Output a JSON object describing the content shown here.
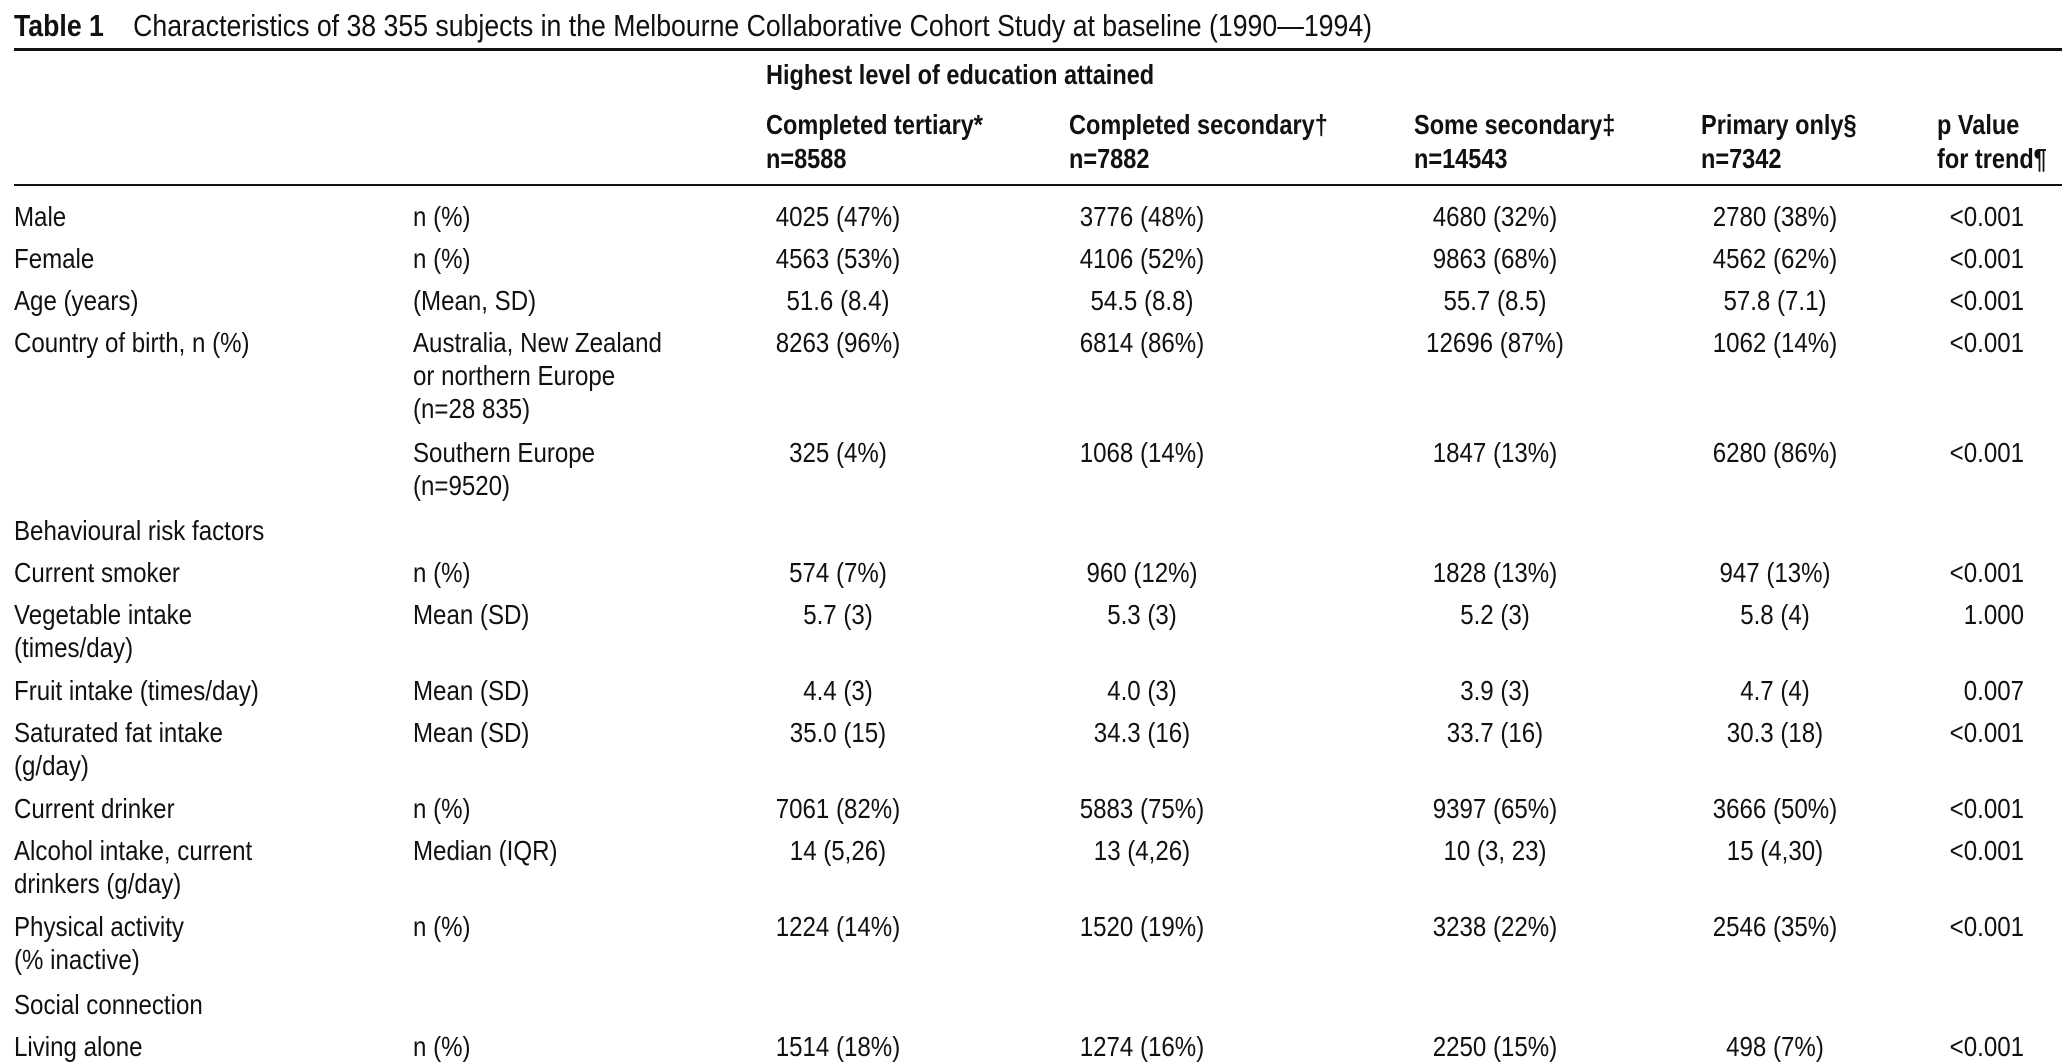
{
  "caption": {
    "label": "Table 1",
    "text": "Characteristics of 38 355 subjects in the Melbourne Collaborative Cohort Study at baseline (1990—1994)"
  },
  "header": {
    "group_title": "Highest level of education attained",
    "columns": [
      {
        "label": "Completed tertiary*",
        "n": "n=8588"
      },
      {
        "label": "Completed secondary†",
        "n": "n=7882"
      },
      {
        "label": "Some secondary‡",
        "n": "n=14543"
      },
      {
        "label": "Primary only§",
        "n": "n=7342"
      }
    ],
    "p_value_line1": "p Value",
    "p_value_line2": "for trend¶"
  },
  "rows": [
    {
      "label": "Male",
      "measure": "n (%)",
      "values": [
        "4025 (47%)",
        "3776 (48%)",
        "4680 (32%)",
        "2780 (38%)"
      ],
      "p": "<0.001"
    },
    {
      "label": "Female",
      "measure": "n (%)",
      "values": [
        "4563 (53%)",
        "4106 (52%)",
        "9863 (68%)",
        "4562 (62%)"
      ],
      "p": "<0.001"
    },
    {
      "label": "Age (years)",
      "measure": "(Mean, SD)",
      "values": [
        "51.6 (8.4)",
        "54.5 (8.8)",
        "55.7 (8.5)",
        "57.8 (7.1)"
      ],
      "p": "<0.001"
    },
    {
      "label": "Country of birth, n (%)",
      "measure": "Australia, New Zealand\nor northern Europe\n(n=28 835)",
      "values": [
        "8263 (96%)",
        "6814 (86%)",
        "12696 (87%)",
        "1062 (14%)"
      ],
      "p": "<0.001"
    },
    {
      "label": "",
      "measure": "Southern Europe\n(n=9520)",
      "values": [
        "325 (4%)",
        "1068 (14%)",
        "1847 (13%)",
        "6280 (86%)"
      ],
      "p": "<0.001"
    },
    {
      "label": "Behavioural risk factors",
      "measure": "",
      "values": [
        "",
        "",
        "",
        ""
      ],
      "p": ""
    },
    {
      "label": "Current smoker",
      "measure": "n (%)",
      "values": [
        "574 (7%)",
        "960 (12%)",
        "1828 (13%)",
        "947 (13%)"
      ],
      "p": "<0.001"
    },
    {
      "label": "Vegetable intake\n(times/day)",
      "measure": "Mean (SD)",
      "values": [
        "5.7 (3)",
        "5.3 (3)",
        "5.2 (3)",
        "5.8 (4)"
      ],
      "p": "1.000"
    },
    {
      "label": "Fruit intake (times/day)",
      "measure": "Mean (SD)",
      "values": [
        "4.4 (3)",
        "4.0 (3)",
        "3.9 (3)",
        "4.7 (4)"
      ],
      "p": "0.007"
    },
    {
      "label": "Saturated fat intake\n(g/day)",
      "measure": "Mean (SD)",
      "values": [
        "35.0 (15)",
        "34.3 (16)",
        "33.7 (16)",
        "30.3 (18)"
      ],
      "p": "<0.001"
    },
    {
      "label": "Current drinker",
      "measure": "n (%)",
      "values": [
        "7061 (82%)",
        "5883 (75%)",
        "9397 (65%)",
        "3666 (50%)"
      ],
      "p": "<0.001"
    },
    {
      "label": "Alcohol intake, current\ndrinkers (g/day)",
      "measure": "Median (IQR)",
      "values": [
        "14 (5,26)",
        "13 (4,26)",
        "10 (3, 23)",
        "15 (4,30)"
      ],
      "p": "<0.001"
    },
    {
      "label": "Physical activity\n(% inactive)",
      "measure": "n (%)",
      "values": [
        "1224 (14%)",
        "1520 (19%)",
        "3238 (22%)",
        "2546 (35%)"
      ],
      "p": "<0.001"
    },
    {
      "label": "Social connection",
      "measure": "",
      "values": [
        "",
        "",
        "",
        ""
      ],
      "p": ""
    },
    {
      "label": "Living alone",
      "measure": "n (%)",
      "values": [
        "1514 (18%)",
        "1274 (16%)",
        "2250 (15%)",
        "498 (7%)"
      ],
      "p": "<0.001"
    }
  ]
}
